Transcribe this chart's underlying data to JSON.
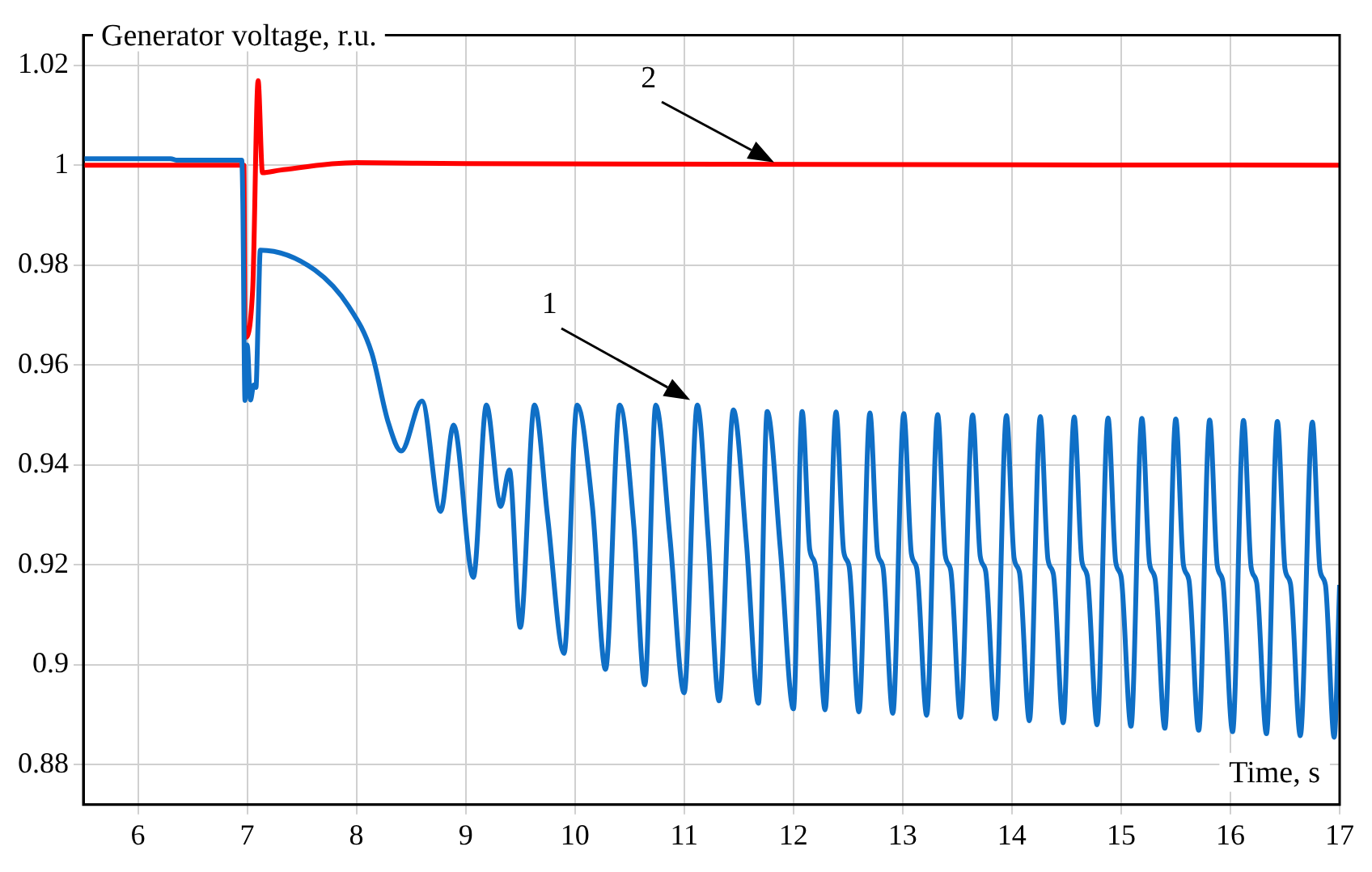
{
  "chart_data": {
    "type": "line",
    "ylabel": "Generator voltage, r.u.",
    "xlabel": "Time, s",
    "xlim": [
      5.5,
      17
    ],
    "xticks": [
      6,
      7,
      8,
      9,
      10,
      11,
      12,
      13,
      14,
      15,
      16,
      17
    ],
    "ylim": [
      0.872,
      1.026
    ],
    "yticks": [
      0.88,
      0.9,
      0.92,
      0.94,
      0.96,
      0.98,
      1,
      1.02
    ],
    "grid": true,
    "annotations": [
      "1",
      "2"
    ],
    "series": [
      {
        "color": "#0f6fc6",
        "x": [
          5.5,
          6.3,
          6.35,
          6.95,
          6.96,
          6.98,
          7.0,
          7.03,
          7.06,
          7.08,
          7.1,
          7.12,
          7.62,
          7.93,
          8.14,
          8.29,
          8.41,
          8.6,
          8.77,
          8.89,
          9.07,
          9.19,
          9.32,
          9.4,
          9.5,
          9.63,
          9.75,
          9.9,
          10.02,
          10.16,
          10.28,
          10.41,
          10.54,
          10.64,
          10.74,
          10.87,
          11.0,
          11.12,
          11.22,
          11.32,
          11.45,
          11.57,
          11.68,
          11.76,
          11.88,
          12.0,
          12.08,
          12.15,
          12.2,
          12.29,
          12.39,
          12.46,
          12.51,
          12.6,
          12.7,
          12.77,
          12.82,
          12.91,
          13.01,
          13.08,
          13.13,
          13.22,
          13.32,
          13.39,
          13.44,
          13.53,
          13.64,
          13.71,
          13.76,
          13.85,
          13.95,
          14.02,
          14.07,
          14.16,
          14.26,
          14.33,
          14.38,
          14.47,
          14.57,
          14.64,
          14.69,
          14.78,
          14.88,
          14.95,
          15.0,
          15.09,
          15.19,
          15.26,
          15.31,
          15.4,
          15.5,
          15.57,
          15.62,
          15.71,
          15.81,
          15.88,
          15.93,
          16.02,
          16.12,
          16.19,
          16.24,
          16.33,
          16.43,
          16.5,
          16.55,
          16.64,
          16.75,
          16.82,
          16.87,
          16.95,
          17.0
        ],
        "values": [
          1.0013,
          1.0013,
          1.001,
          1.001,
          0.9927,
          0.9529,
          0.964,
          0.953,
          0.956,
          0.9555,
          0.969,
          0.983,
          0.979,
          0.9717,
          0.9624,
          0.9486,
          0.9428,
          0.9528,
          0.9307,
          0.948,
          0.9175,
          0.952,
          0.9317,
          0.939,
          0.9075,
          0.952,
          0.9296,
          0.9023,
          0.952,
          0.9317,
          0.8991,
          0.952,
          0.9275,
          0.896,
          0.952,
          0.9254,
          0.8944,
          0.952,
          0.9254,
          0.8928,
          0.951,
          0.9244,
          0.8923,
          0.9507,
          0.9233,
          0.8912,
          0.9507,
          0.923,
          0.92,
          0.891,
          0.9506,
          0.9227,
          0.9197,
          0.8906,
          0.9504,
          0.9225,
          0.9195,
          0.8903,
          0.9503,
          0.9222,
          0.9192,
          0.8899,
          0.9501,
          0.9219,
          0.9189,
          0.8895,
          0.95,
          0.9217,
          0.9187,
          0.8892,
          0.9499,
          0.9214,
          0.9184,
          0.8888,
          0.9497,
          0.9211,
          0.9181,
          0.8884,
          0.9496,
          0.9208,
          0.9178,
          0.888,
          0.9494,
          0.9206,
          0.9176,
          0.8877,
          0.9493,
          0.9203,
          0.9173,
          0.8873,
          0.9492,
          0.92,
          0.917,
          0.8869,
          0.949,
          0.9198,
          0.9168,
          0.8866,
          0.9489,
          0.9195,
          0.9165,
          0.8862,
          0.9487,
          0.9192,
          0.9162,
          0.8858,
          0.9486,
          0.919,
          0.916,
          0.8855,
          0.916
        ]
      },
      {
        "color": "#ff0000",
        "x": [
          5.5,
          6.97,
          6.98,
          7.05,
          7.1,
          7.14,
          7.3,
          8.0,
          9.0,
          17.0
        ],
        "values": [
          1.0,
          1.0,
          0.9655,
          0.975,
          1.0169,
          0.9985,
          0.999,
          1.0005,
          1.0003,
          1.0
        ]
      }
    ]
  }
}
